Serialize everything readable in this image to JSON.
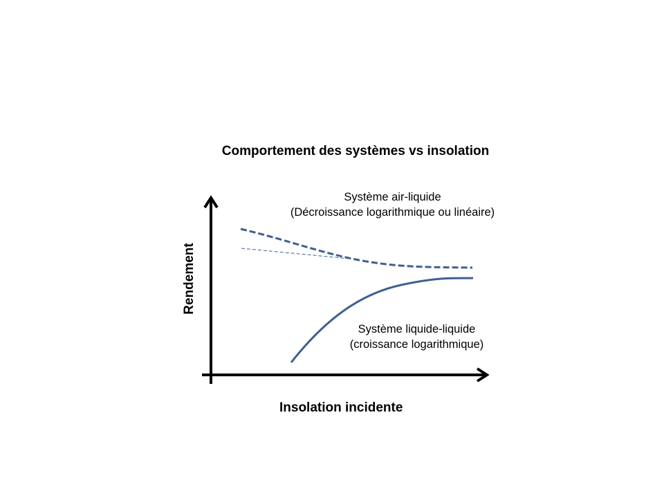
{
  "title": "Comportement des systèmes vs insolation",
  "x_axis_label": "Insolation incidente",
  "y_axis_label": "Rendement",
  "series": [
    {
      "label_line1": "Système air-liquide",
      "label_line2": "(Décroissance logarithmique ou linéaire)",
      "style": "dashed",
      "trend": "decreasing"
    },
    {
      "label_line1": "Système liquide-liquide",
      "label_line2": "(croissance logarithmique)",
      "style": "solid",
      "trend": "increasing"
    }
  ],
  "colors": {
    "curve": "#3f5f8f",
    "axes": "#000000"
  }
}
